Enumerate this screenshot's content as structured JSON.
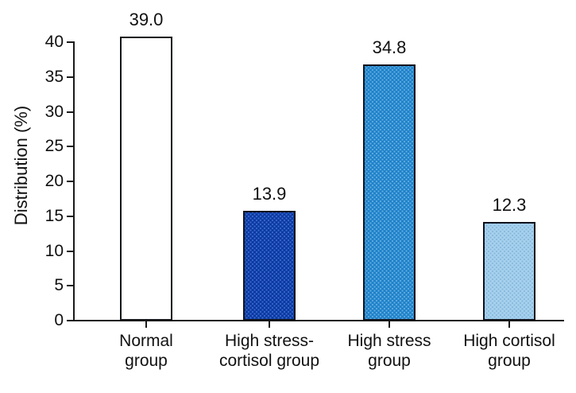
{
  "chart_data": {
    "type": "bar",
    "title": "",
    "ylabel": "Distribution (%)",
    "xlabel": "",
    "ylim": [
      0,
      40
    ],
    "yticks": [
      0,
      5,
      10,
      15,
      20,
      25,
      30,
      35,
      40
    ],
    "grid": false,
    "legend": null,
    "categories": [
      {
        "id": "normal-group",
        "label_lines": [
          "Normal",
          "group"
        ]
      },
      {
        "id": "high-stress-cortisol-group",
        "label_lines": [
          "High stress-",
          "cortisol group"
        ]
      },
      {
        "id": "high-stress-group",
        "label_lines": [
          "High stress",
          "group"
        ]
      },
      {
        "id": "high-cortisol-group",
        "label_lines": [
          "High cortisol",
          "group"
        ]
      }
    ],
    "values": [
      39.0,
      13.9,
      34.8,
      12.3
    ],
    "value_labels": [
      "39.0",
      "13.9",
      "34.8",
      "12.3"
    ],
    "bar_tops_read_from_axis": [
      40.8,
      15.8,
      36.8,
      14.2
    ],
    "bars": [
      {
        "fill": "#ffffff",
        "dot": "#ffffff",
        "border": "#14161a"
      },
      {
        "fill": "#0c3aa0",
        "dot": "#3a6ad4",
        "border": "#10131c"
      },
      {
        "fill": "#1f82cb",
        "dot": "#64aedc",
        "border": "#10131c"
      },
      {
        "fill": "#a7d1ed",
        "dot": "#86b8db",
        "border": "#10131c"
      }
    ],
    "colors": {
      "axis": "#1a1a1a",
      "text": "#111111",
      "background": "#ffffff"
    }
  }
}
